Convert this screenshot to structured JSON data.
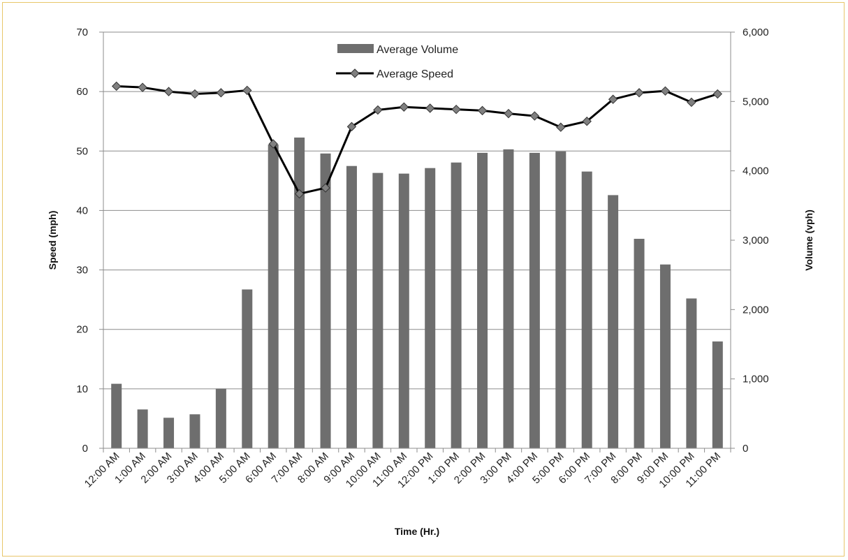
{
  "chart_data": {
    "type": "bar",
    "categories": [
      "12:00 AM",
      "1:00 AM",
      "2:00 AM",
      "3:00 AM",
      "4:00 AM",
      "5:00 AM",
      "6:00 AM",
      "7:00 AM",
      "8:00 AM",
      "9:00 AM",
      "10:00 AM",
      "11:00 AM",
      "12:00 PM",
      "1:00 PM",
      "2:00 PM",
      "3:00 PM",
      "4:00 PM",
      "5:00 PM",
      "6:00 PM",
      "7:00 PM",
      "8:00 PM",
      "9:00 PM",
      "10:00 PM",
      "11:00 PM"
    ],
    "series": [
      {
        "name": "Average Volume",
        "type": "bar",
        "axis": "right",
        "color": "#6e6e6e",
        "values": [
          930,
          560,
          440,
          490,
          860,
          2290,
          4380,
          4480,
          4250,
          4070,
          3970,
          3960,
          4040,
          4120,
          4260,
          4310,
          4260,
          4280,
          3990,
          3650,
          3020,
          2650,
          2160,
          1540
        ]
      },
      {
        "name": "Average Speed",
        "type": "line",
        "axis": "left",
        "color": "#000000",
        "marker_color": "#808080",
        "values": [
          60.9,
          60.7,
          60.0,
          59.6,
          59.8,
          60.2,
          51.2,
          42.8,
          43.8,
          54.1,
          56.9,
          57.4,
          57.2,
          57.0,
          56.8,
          56.3,
          55.9,
          54.0,
          55.0,
          58.7,
          59.8,
          60.1,
          58.2,
          59.6
        ]
      }
    ],
    "xlabel": "Time (Hr.)",
    "ylabel": "Speed (mph)",
    "y2label": "Volume (vph)",
    "ylim": [
      0,
      70
    ],
    "y2lim": [
      0,
      6000
    ],
    "yticks": [
      "0",
      "10",
      "20",
      "30",
      "40",
      "50",
      "60",
      "70"
    ],
    "y2ticks": [
      "0",
      "1,000",
      "2,000",
      "3,000",
      "4,000",
      "5,000",
      "6,000"
    ],
    "grid": true,
    "legend": "top-center"
  }
}
